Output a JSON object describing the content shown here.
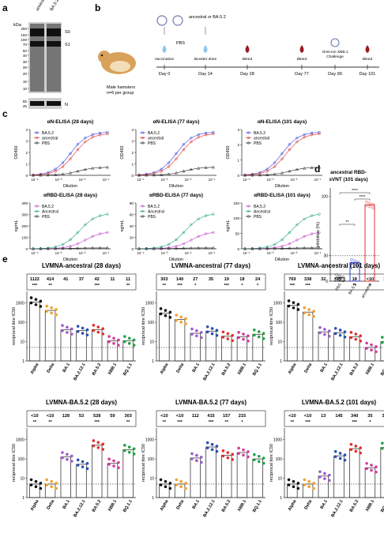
{
  "panels": {
    "a": "a",
    "b": "b",
    "c": "c",
    "d": "d",
    "e": "e"
  },
  "panel_a": {
    "lanes": [
      "ancestral",
      "BA.5.2"
    ],
    "kda_label": "kDa",
    "markers": [
      "250",
      "150",
      "100",
      "70",
      "50",
      "40",
      "30",
      "25",
      "20",
      "15",
      "10"
    ],
    "bottom_markers": [
      "55",
      "45"
    ],
    "labels": [
      "S0",
      "S1",
      "N"
    ]
  },
  "panel_b": {
    "virus_label": "ancestral or BA.5.2",
    "pbs_label": "PBS",
    "animal_label": "Male hamsters",
    "group_label": "n=6 per group",
    "events": [
      "Vaccination",
      "Booster dose",
      "Bleed",
      "Bleed",
      "Omicron XBB.1 Challenge",
      "Bleed"
    ],
    "days": [
      "Day 0",
      "Day 14",
      "Day 28",
      "Day 77",
      "Day 99",
      "Day 101"
    ]
  },
  "panel_c": {
    "n_titles": [
      "αN-ELISA (28 days)",
      "αN-ELISA (77 days)",
      "αN-ELISA (101 days)"
    ],
    "rbd_titles": [
      "αRBD-ELISA (28 days)",
      "αRBD-ELISA (77 days)",
      "αRBD-ELISA (101 days)"
    ],
    "n_ylabel": "OD450",
    "rbd_ylabel": "ng/mL",
    "xlabel": "Dilution",
    "n_legend": [
      "BA.5.2",
      "ancestral",
      "PBS"
    ],
    "rbd_legend": [
      "BA.5.2",
      "Ancestral",
      "PBS"
    ],
    "x_ticks": [
      "10⁻⁴",
      "10⁻³",
      "10⁻²",
      "10⁻¹"
    ],
    "n_yticks_28": [
      "0",
      "1",
      "2",
      "3",
      "4"
    ],
    "n_yticks_77": [
      "0",
      "1",
      "2",
      "3",
      "4"
    ],
    "n_yticks_101": [
      "0",
      "1",
      "2",
      "3"
    ],
    "rbd_yticks_28": [
      "0",
      "100",
      "200",
      "300",
      "400"
    ],
    "rbd_yticks_77": [
      "0",
      "20",
      "40",
      "60",
      "80"
    ],
    "rbd_yticks_101": [
      "0",
      "50",
      "100",
      "150"
    ]
  },
  "panel_d": {
    "title_line1": "ancestral RBD-",
    "title_line2": "sVNT (101 days)",
    "ylabel": "inhibition (%)",
    "yticks": [
      "0",
      "30",
      "100"
    ],
    "categories": [
      "PBS",
      "BA.5.2",
      "ancestral"
    ],
    "sig": [
      "****",
      "****",
      "**"
    ]
  },
  "panel_e": {
    "ylabel": "reciprocal titre IC50",
    "yticks": [
      "1",
      "10",
      "100",
      "1000"
    ],
    "categories": [
      "Alpha",
      "Delta",
      "BA.1",
      "BA.2.12.1",
      "BA.5.2",
      "XBB.1",
      "BQ.1.1"
    ],
    "panels": [
      {
        "title": "LVMNA-ancestral (28 days)",
        "titres": [
          "1122",
          "414",
          "41",
          "37",
          "42",
          "11",
          "11"
        ],
        "sig": [
          "***",
          "**",
          "",
          "",
          "***",
          "",
          "**"
        ]
      },
      {
        "title": "LVMNA-ancestral (77 days)",
        "titres": [
          "303",
          "140",
          "27",
          "35",
          "19",
          "18",
          "24"
        ],
        "sig": [
          "**",
          "***",
          "*",
          "",
          "***",
          "*",
          "*"
        ]
      },
      {
        "title": "LVMNA-ancestral (101 days)",
        "titres": [
          "769",
          "338",
          "32",
          "29",
          "18",
          "<10",
          "10"
        ],
        "sig": [
          "***",
          "***",
          "",
          "",
          "**",
          "*",
          ""
        ]
      },
      {
        "title": "LVMNA-BA.5.2 (28 days)",
        "titres": [
          "<10",
          "<10",
          "128",
          "53",
          "528",
          "59",
          "303"
        ],
        "sig": [
          "**",
          "**",
          "",
          "",
          "***",
          "",
          "**"
        ]
      },
      {
        "title": "LVMNA-BA.5.2 (77 days)",
        "titres": [
          "<10",
          "<10",
          "112",
          "415",
          "157",
          "215",
          ""
        ],
        "sig": [
          "**",
          "***",
          "",
          "***",
          "**",
          "*",
          ""
        ]
      },
      {
        "title": "LVMNA-BA.5.2 (101 days)",
        "titres": [
          "<10",
          "<10",
          "13",
          "145",
          "340",
          "35",
          "391"
        ],
        "sig": [
          "**",
          "***",
          "",
          "",
          "***",
          "*",
          "*"
        ]
      }
    ]
  },
  "colors": {
    "ba52": "#2f3fd6",
    "ancestral_n": "#e0302f",
    "ancestral_rbd": "#1fa37a",
    "ba52_rbd": "#c040c8",
    "pbs": "#222222",
    "e_colors": [
      "#111111",
      "#f0a030",
      "#9a5cc8",
      "#2c4fb0",
      "#e0302f",
      "#d43a9a",
      "#23a046"
    ]
  }
}
